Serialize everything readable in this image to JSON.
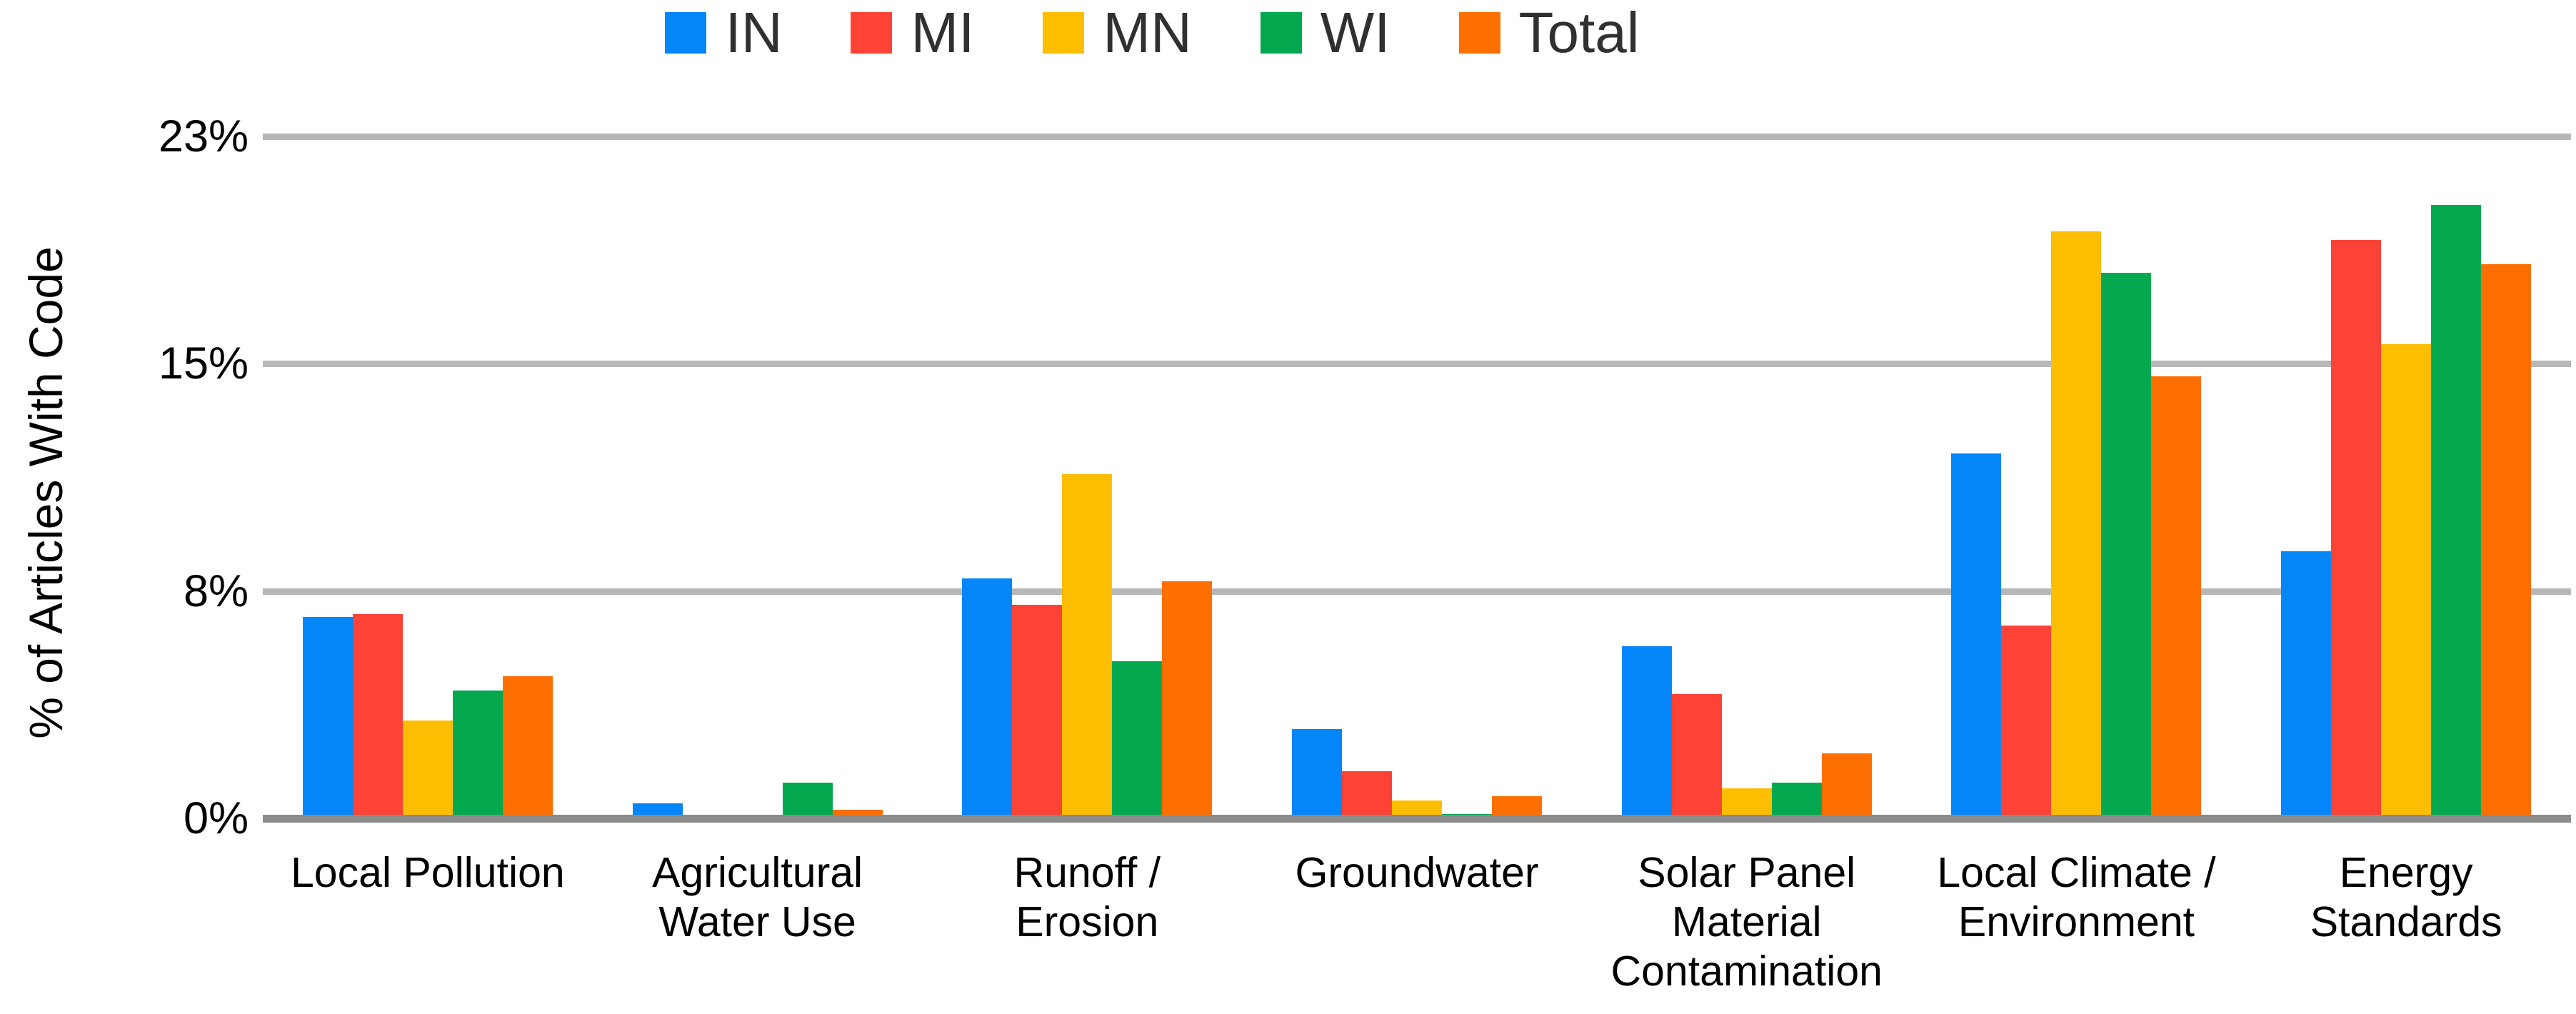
{
  "legend": {
    "position": "top",
    "items": [
      {
        "label": "IN",
        "color": "#0485F8"
      },
      {
        "label": "MI",
        "color": "#FD4336"
      },
      {
        "label": "MN",
        "color": "#FDBD01"
      },
      {
        "label": "WI",
        "color": "#04A94F"
      },
      {
        "label": "Total",
        "color": "#FE6F01"
      }
    ]
  },
  "y_axis": {
    "title": "% of Articles With Code",
    "max": 23,
    "ticks": [
      {
        "label": "0%",
        "value": 0
      },
      {
        "label": "8%",
        "value": 7.67
      },
      {
        "label": "15%",
        "value": 15.33
      },
      {
        "label": "23%",
        "value": 23
      }
    ]
  },
  "chart_data": {
    "type": "bar",
    "title": "",
    "xlabel": "",
    "ylabel": "% of Articles With Code",
    "ylim": [
      0,
      23
    ],
    "grid": "horizontal",
    "legend_position": "top",
    "gridline_values": [
      0,
      7.67,
      15.33,
      23
    ],
    "gridline_labels": [
      "0%",
      "8%",
      "15%",
      "23%"
    ],
    "categories": [
      "Local Pollution",
      "Agricultural\nWater Use",
      "Runoff /\nErosion",
      "Groundwater",
      "Solar Panel\nMaterial\nContamination",
      "Local Climate /\nEnvironment",
      "Energy\nStandards"
    ],
    "series": [
      {
        "name": "IN",
        "color": "#0485F8",
        "values": [
          6.8,
          0.5,
          8.1,
          3.0,
          5.8,
          12.3,
          9.0
        ]
      },
      {
        "name": "MI",
        "color": "#FD4336",
        "values": [
          6.9,
          0,
          7.2,
          1.6,
          4.2,
          6.5,
          19.5
        ]
      },
      {
        "name": "MN",
        "color": "#FDBD01",
        "values": [
          3.3,
          0,
          11.6,
          0.6,
          1.0,
          19.8,
          16.0
        ]
      },
      {
        "name": "WI",
        "color": "#04A94F",
        "values": [
          4.3,
          1.2,
          5.3,
          0.15,
          1.2,
          18.4,
          20.7
        ]
      },
      {
        "name": "Total",
        "color": "#FE6F01",
        "values": [
          4.8,
          0.3,
          8.0,
          0.75,
          2.2,
          14.9,
          18.7
        ]
      }
    ]
  },
  "style_colors": {
    "gridline": "#b7b7b7",
    "axis_line": "#8a8a8a",
    "text": "#000000",
    "legend_text": "#303030",
    "background": "#ffffff"
  }
}
